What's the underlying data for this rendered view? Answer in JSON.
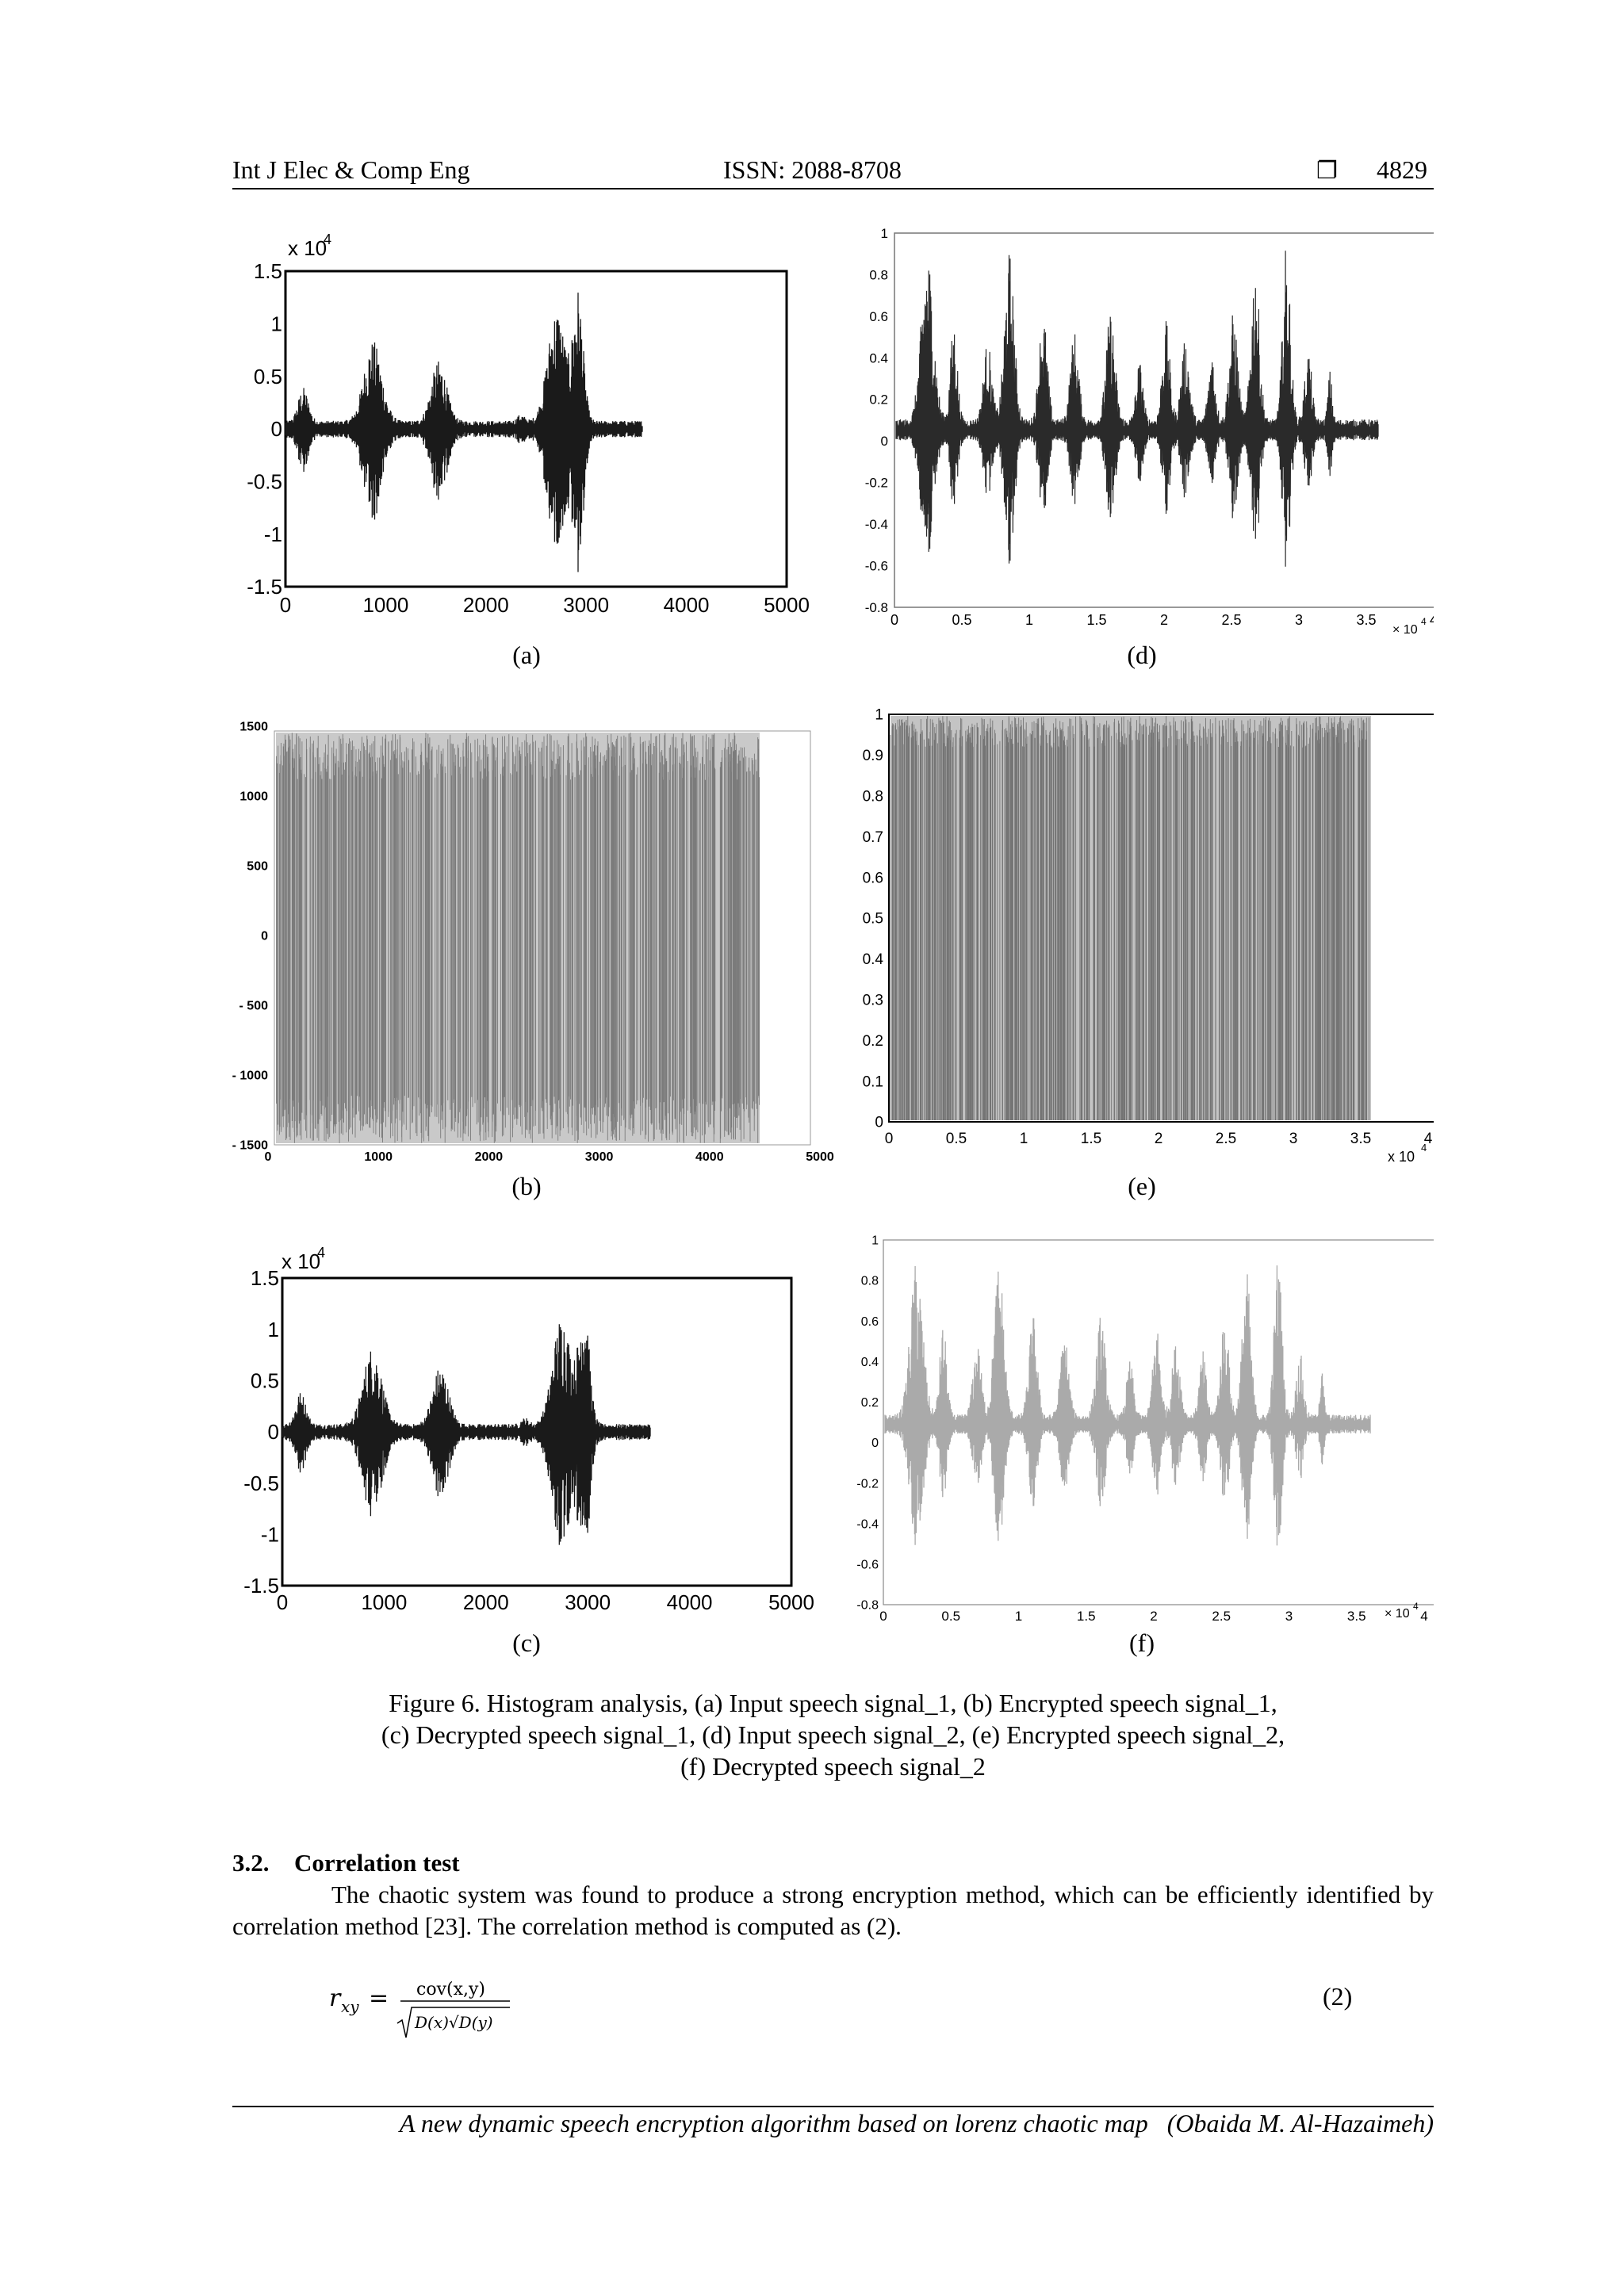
{
  "header": {
    "journal": "Int J Elec & Comp Eng",
    "issn": "ISSN: 2088-8708",
    "box_glyph": "❐",
    "page": "4829"
  },
  "panels": {
    "a": {
      "letter": "(a)",
      "exponent_label": "x 10",
      "exponent_power": "4",
      "yticks": [
        "1.5",
        "1",
        "0.5",
        "0",
        "-0.5",
        "-1",
        "-1.5"
      ],
      "xticks": [
        "0",
        "1000",
        "2000",
        "3000",
        "4000",
        "5000"
      ]
    },
    "b": {
      "letter": "(b)",
      "yticks": [
        "1500",
        "1000",
        "500",
        "0",
        "- 500",
        "- 1000",
        "- 1500"
      ],
      "xticks": [
        "0",
        "1000",
        "2000",
        "3000",
        "4000",
        "5000"
      ]
    },
    "c": {
      "letter": "(c)",
      "exponent_label": "x 10",
      "exponent_power": "4",
      "yticks": [
        "1.5",
        "1",
        "0.5",
        "0",
        "-0.5",
        "-1",
        "-1.5"
      ],
      "xticks": [
        "0",
        "1000",
        "2000",
        "3000",
        "4000",
        "5000"
      ]
    },
    "d": {
      "letter": "(d)",
      "exponent_label": "× 10",
      "exponent_power": "4",
      "yticks": [
        "1",
        "0.8",
        "0.6",
        "0.4",
        "0.2",
        "0",
        "-0.2",
        "-0.4",
        "-0.6",
        "-0.8"
      ],
      "xticks": [
        "0",
        "0.5",
        "1",
        "1.5",
        "2",
        "2.5",
        "3",
        "3.5",
        "4"
      ]
    },
    "e": {
      "letter": "(e)",
      "exponent_label": "x 10",
      "exponent_power": "4",
      "yticks": [
        "1",
        "0.9",
        "0.8",
        "0.7",
        "0.6",
        "0.5",
        "0.4",
        "0.3",
        "0.2",
        "0.1",
        "0"
      ],
      "xticks": [
        "0",
        "0.5",
        "1",
        "1.5",
        "2",
        "2.5",
        "3",
        "3.5",
        "4"
      ]
    },
    "f": {
      "letter": "(f)",
      "exponent_label": "× 10",
      "exponent_power": "4",
      "yticks": [
        "1",
        "0.8",
        "0.6",
        "0.4",
        "0.2",
        "0",
        "-0.2",
        "-0.4",
        "-0.6",
        "-0.8"
      ],
      "xticks": [
        "0",
        "0.5",
        "1",
        "1.5",
        "2",
        "2.5",
        "3",
        "3.5",
        "4"
      ]
    }
  },
  "figure_caption": {
    "line1": "Figure 6. Histogram analysis, (a) Input speech signal_1, (b) Encrypted speech signal_1,",
    "line2": "(c) Decrypted speech signal_1, (d) Input speech signal_2, (e) Encrypted speech signal_2,",
    "line3": "(f) Decrypted speech signal_2"
  },
  "section": {
    "number": "3.2.",
    "title": "Correlation test",
    "paragraph": "The chaotic system was found to produce a strong encryption method, which can be efficiently identified by correlation method [23]. The correlation method is computed as (2)."
  },
  "equation": {
    "lhs": "r",
    "lhs_sub": "xy",
    "numerator": "cov(x,y)",
    "denominator": "D(x)√D(y)",
    "number": "(2)"
  },
  "footer": {
    "title": "A new dynamic speech encryption algorithm based on lorenz chaotic map",
    "author": "(Obaida M. Al-Hazaimeh)"
  }
}
